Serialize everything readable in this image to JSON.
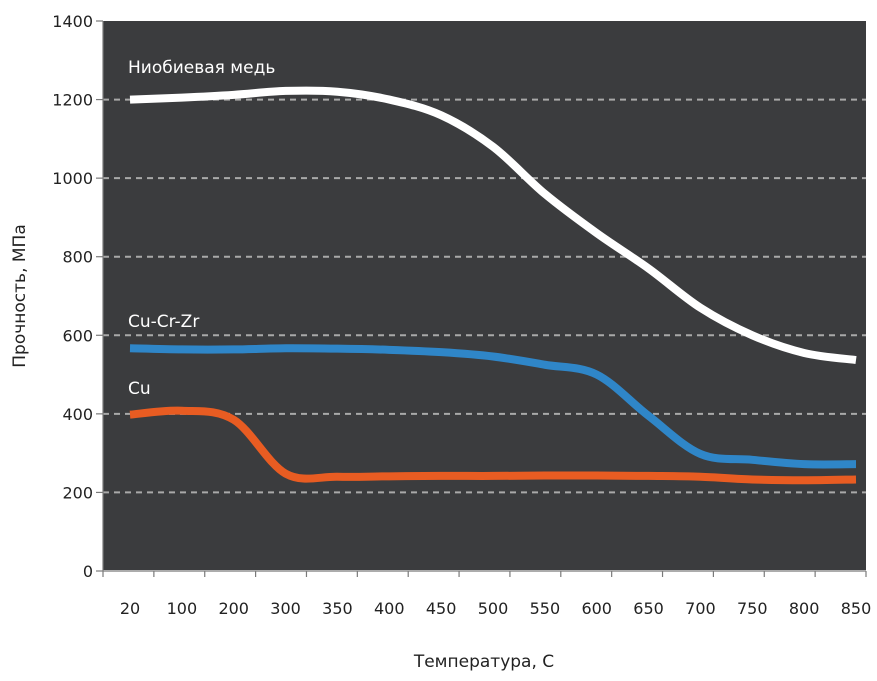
{
  "chart_data": {
    "type": "line",
    "xlabel": "Температура, С",
    "ylabel": "Прочность, МПа",
    "categories": [
      "20",
      "100",
      "200",
      "300",
      "350",
      "400",
      "450",
      "500",
      "550",
      "600",
      "650",
      "700",
      "750",
      "800",
      "850"
    ],
    "ylim": [
      0,
      1400
    ],
    "yticks": [
      "0",
      "200",
      "400",
      "600",
      "800",
      "1000",
      "1200",
      "1400"
    ],
    "grid": "horizontal dashed",
    "background": "#3b3c3e",
    "series": [
      {
        "name": "Ниобиевая медь",
        "color": "#ffffff",
        "values": [
          1200,
          1205,
          1212,
          1222,
          1220,
          1200,
          1160,
          1080,
          960,
          860,
          770,
          670,
          600,
          555,
          537
        ]
      },
      {
        "name": "Cu-Cr-Zr",
        "color": "#2f86c8",
        "values": [
          567,
          564,
          564,
          567,
          566,
          563,
          557,
          546,
          525,
          500,
          395,
          298,
          283,
          272,
          272
        ]
      },
      {
        "name": "Cu",
        "color": "#e85c22",
        "values": [
          398,
          408,
          385,
          248,
          240,
          241,
          242,
          242,
          243,
          243,
          242,
          240,
          233,
          231,
          233
        ]
      }
    ]
  }
}
